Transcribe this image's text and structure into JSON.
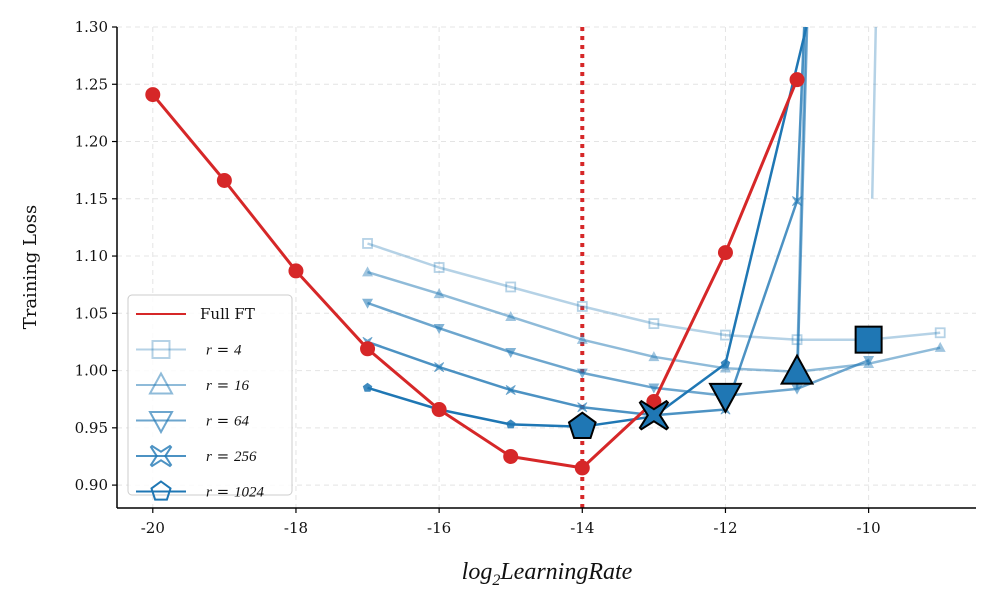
{
  "chart_data": {
    "type": "line",
    "title": "",
    "xlabel": "log2LearningRate",
    "xlabel_parts": {
      "prefix": "log",
      "sub": "2",
      "rest": "LearningRate"
    },
    "ylabel": "Training Loss",
    "xlim": [
      -20.5,
      -8.5
    ],
    "ylim": [
      0.88,
      1.3
    ],
    "xticks": [
      -20,
      -18,
      -16,
      -14,
      -12,
      -10
    ],
    "xtick_labels": [
      "-20",
      "-18",
      "-16",
      "-14",
      "-12",
      "-10"
    ],
    "yticks": [
      0.9,
      0.95,
      1.0,
      1.05,
      1.1,
      1.15,
      1.2,
      1.25,
      1.3
    ],
    "ytick_labels": [
      "0.90",
      "0.95",
      "1.00",
      "1.05",
      "1.10",
      "1.15",
      "1.20",
      "1.25",
      "1.30"
    ],
    "grid": true,
    "legend_position": "lower-left",
    "vline": {
      "x": -14,
      "color": "#d62728",
      "style": "dotted"
    },
    "series": [
      {
        "name": "Full FT",
        "label": "Full FT",
        "color": "#d62728",
        "opacity": 1.0,
        "marker": "circle",
        "x": [
          -20,
          -19,
          -18,
          -17,
          -16,
          -15,
          -14,
          -13,
          -12,
          -11
        ],
        "y": [
          1.241,
          1.166,
          1.087,
          1.019,
          0.966,
          0.925,
          0.915,
          0.973,
          1.103,
          1.254
        ],
        "optimum": null
      },
      {
        "name": "r=4",
        "label_r": "r",
        "label_val": "4",
        "color": "#1f77b4",
        "opacity": 0.33,
        "marker": "square",
        "x": [
          -17,
          -16,
          -15,
          -14,
          -13,
          -12,
          -11,
          -10,
          -9
        ],
        "y": [
          1.111,
          1.09,
          1.073,
          1.056,
          1.041,
          1.031,
          1.027,
          1.027,
          1.033
        ],
        "optimum": {
          "x": -10,
          "y": 1.027
        }
      },
      {
        "name": "r=16",
        "label_r": "r",
        "label_val": "16",
        "color": "#1f77b4",
        "opacity": 0.5,
        "marker": "triangle-up",
        "x": [
          -17,
          -16,
          -15,
          -14,
          -13,
          -12,
          -11,
          -10,
          -9
        ],
        "y": [
          1.086,
          1.067,
          1.047,
          1.027,
          1.012,
          1.002,
          0.999,
          1.006,
          1.02
        ],
        "optimum": {
          "x": -11,
          "y": 0.999
        }
      },
      {
        "name": "r=64",
        "label_r": "r",
        "label_val": "64",
        "color": "#1f77b4",
        "opacity": 0.65,
        "marker": "triangle-down",
        "x": [
          -17,
          -16,
          -15,
          -14,
          -13,
          -12,
          -11,
          -10
        ],
        "y": [
          1.059,
          1.037,
          1.016,
          0.998,
          0.985,
          0.978,
          0.984,
          1.009
        ],
        "optimum": {
          "x": -12,
          "y": 0.978
        }
      },
      {
        "name": "r=256",
        "label_r": "r",
        "label_val": "256",
        "color": "#1f77b4",
        "opacity": 0.8,
        "marker": "x",
        "x": [
          -17,
          -16,
          -15,
          -14,
          -13,
          -12,
          -11
        ],
        "y": [
          1.025,
          1.003,
          0.983,
          0.968,
          0.961,
          0.966,
          1.148
        ],
        "optimum": {
          "x": -13,
          "y": 0.961
        }
      },
      {
        "name": "r=1024",
        "label_r": "r",
        "label_val": "1024",
        "color": "#1f77b4",
        "opacity": 1.0,
        "marker": "pentagon",
        "x": [
          -17,
          -16,
          -15,
          -14,
          -13,
          -12
        ],
        "y": [
          0.985,
          0.966,
          0.953,
          0.951,
          0.96,
          1.006
        ],
        "optimum": {
          "x": -14,
          "y": 0.951
        }
      }
    ],
    "divergence": [
      {
        "series": "r=4",
        "from": [
          -9.95,
          1.15
        ],
        "to": [
          -9.9,
          1.3
        ]
      },
      {
        "series": "r=16",
        "from": [
          -11,
          0.999
        ],
        "to": [
          -10.88,
          1.3
        ]
      },
      {
        "series": "r=64",
        "from": [
          -11,
          0.984
        ],
        "to": [
          -10.86,
          1.3
        ]
      },
      {
        "series": "r=256",
        "from": [
          -11,
          1.148
        ],
        "to": [
          -10.9,
          1.3
        ]
      },
      {
        "series": "r=1024",
        "from": [
          -12,
          1.006
        ],
        "to": [
          -10.87,
          1.3
        ]
      }
    ]
  }
}
